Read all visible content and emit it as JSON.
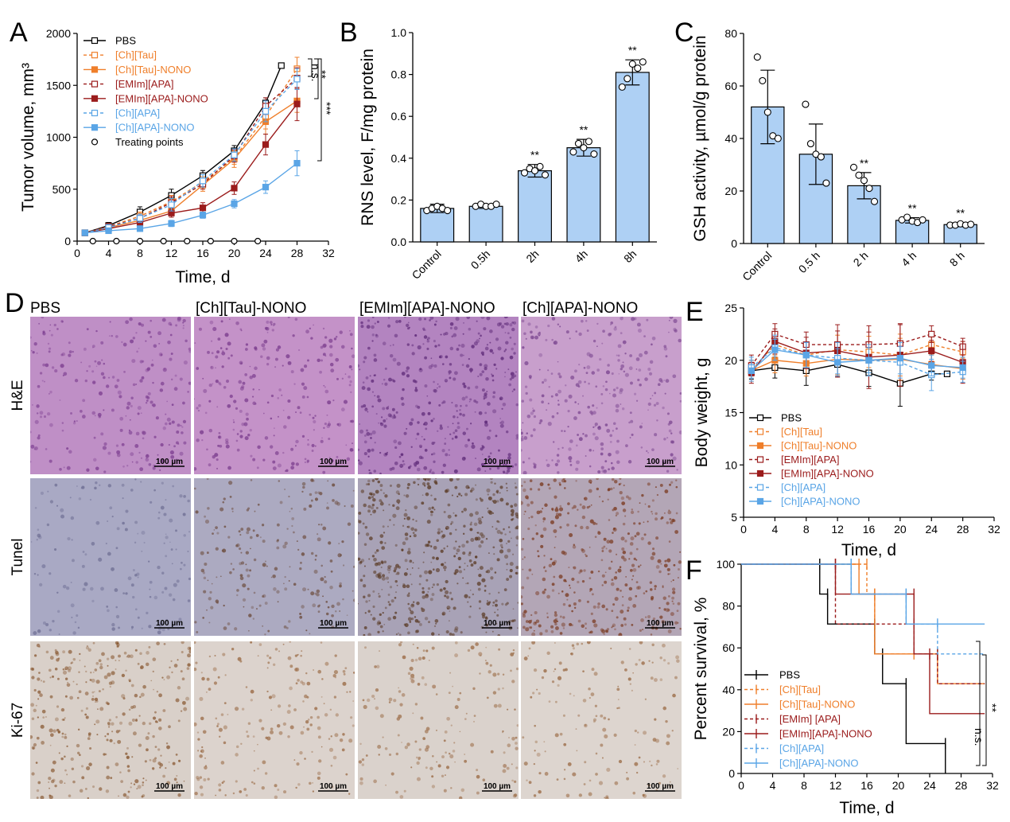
{
  "panels": {
    "A": "A",
    "B": "B",
    "C": "C",
    "D": "D",
    "E": "E",
    "F": "F"
  },
  "colors": {
    "PBS": "#000000",
    "[Ch][Tau]": "#ef7f2b",
    "[Ch][Tau]-NONO": "#ef7f2b",
    "[EMIm][APA]": "#9b1c1c",
    "[EMIm][APA]-NONO": "#9b1c1c",
    "[Ch][APA]": "#5aa5e6",
    "[Ch][APA]-NONO": "#5aa5e6",
    "bar_fill": "#aed0f4"
  },
  "chart_data": [
    {
      "panel": "A",
      "type": "line",
      "xlabel": "Time, d",
      "ylabel": "Tumor volume, mm³",
      "xlim": [
        0,
        32
      ],
      "ylim": [
        0,
        2000
      ],
      "xticks": [
        0,
        4,
        8,
        12,
        16,
        20,
        24,
        28,
        32
      ],
      "yticks": [
        0,
        500,
        1000,
        1500,
        2000
      ],
      "legend_position": "top-left",
      "series": [
        {
          "name": "PBS",
          "style": "solid-open-square",
          "x": [
            1,
            4,
            8,
            12,
            16,
            20,
            24,
            26
          ],
          "y": [
            80,
            150,
            280,
            440,
            630,
            870,
            1330,
            1690
          ],
          "err": [
            20,
            30,
            50,
            60,
            50,
            50,
            50,
            20
          ]
        },
        {
          "name": "[Ch][Tau]",
          "style": "dashed-open-square",
          "x": [
            1,
            4,
            8,
            12,
            16,
            20,
            24,
            28
          ],
          "y": [
            80,
            140,
            240,
            380,
            570,
            800,
            1200,
            1660
          ],
          "err": [
            20,
            30,
            40,
            60,
            50,
            60,
            120,
            110
          ]
        },
        {
          "name": "[Ch][Tau]-NONO",
          "style": "solid-filled-square",
          "x": [
            1,
            4,
            8,
            12,
            16,
            20,
            24,
            28
          ],
          "y": [
            80,
            130,
            200,
            290,
            540,
            790,
            1150,
            1350
          ],
          "err": [
            20,
            20,
            30,
            40,
            60,
            80,
            120,
            110
          ]
        },
        {
          "name": "[EMIm][APA]",
          "style": "dashed-open-square",
          "x": [
            1,
            4,
            8,
            12,
            16,
            20,
            24,
            28
          ],
          "y": [
            80,
            140,
            220,
            370,
            550,
            820,
            1300,
            1570
          ],
          "err": [
            20,
            30,
            40,
            60,
            50,
            60,
            80,
            100
          ]
        },
        {
          "name": "[EMIm][APA]-NONO",
          "style": "solid-filled-square",
          "x": [
            1,
            4,
            8,
            12,
            16,
            20,
            24,
            28
          ],
          "y": [
            80,
            120,
            180,
            270,
            320,
            510,
            930,
            1320
          ],
          "err": [
            20,
            20,
            30,
            40,
            50,
            60,
            100,
            160
          ]
        },
        {
          "name": "[Ch][APA]",
          "style": "dashed-open-square",
          "x": [
            1,
            4,
            8,
            12,
            16,
            20,
            24,
            28
          ],
          "y": [
            80,
            130,
            220,
            350,
            580,
            830,
            1250,
            1560
          ],
          "err": [
            20,
            30,
            40,
            60,
            60,
            60,
            100,
            100
          ]
        },
        {
          "name": "[Ch][APA]-NONO",
          "style": "solid-filled-square",
          "x": [
            1,
            4,
            8,
            12,
            16,
            20,
            24,
            28
          ],
          "y": [
            80,
            100,
            120,
            170,
            250,
            360,
            520,
            750
          ],
          "err": [
            20,
            20,
            20,
            30,
            30,
            40,
            60,
            120
          ]
        },
        {
          "name": "Treating points",
          "style": "open-circle",
          "x": [
            2,
            5,
            8,
            11,
            14,
            17,
            20,
            23
          ],
          "y": [
            0,
            0,
            0,
            0,
            0,
            0,
            0,
            0
          ]
        }
      ],
      "annotations": [
        "n.s.",
        "**",
        "***"
      ]
    },
    {
      "panel": "B",
      "type": "bar",
      "ylabel": "RNS level, F/mg protein",
      "ylim": [
        0,
        1.0
      ],
      "yticks": [
        "0.0",
        "0.2",
        "0.4",
        "0.6",
        "0.8",
        "1.0"
      ],
      "categories": [
        "Control",
        "0.5h",
        "2h",
        "4h",
        "8h"
      ],
      "values": [
        0.16,
        0.17,
        0.34,
        0.45,
        0.81
      ],
      "err": [
        0.02,
        0.01,
        0.03,
        0.04,
        0.06
      ],
      "points": [
        [
          0.15,
          0.16,
          0.17,
          0.16,
          0.15
        ],
        [
          0.17,
          0.18,
          0.17,
          0.17,
          0.18
        ],
        [
          0.33,
          0.35,
          0.34,
          0.36,
          0.32
        ],
        [
          0.43,
          0.47,
          0.45,
          0.48,
          0.42
        ],
        [
          0.74,
          0.78,
          0.85,
          0.83,
          0.86
        ]
      ],
      "significance": [
        "",
        "",
        "**",
        "**",
        "**"
      ]
    },
    {
      "panel": "C",
      "type": "bar",
      "ylabel": "GSH activity, µmol/g protein",
      "ylim": [
        0,
        80
      ],
      "yticks": [
        "0",
        "20",
        "40",
        "60",
        "80"
      ],
      "categories": [
        "Control",
        "0.5 h",
        "2 h",
        "4 h",
        "8 h"
      ],
      "values": [
        52,
        34,
        22,
        8.8,
        7.2
      ],
      "err": [
        14,
        11.5,
        5,
        1,
        0.8
      ],
      "points": [
        [
          71,
          62,
          50,
          41,
          40
        ],
        [
          53,
          38,
          34,
          33,
          23
        ],
        [
          29,
          26,
          24,
          21,
          16
        ],
        [
          9,
          10,
          8.5,
          8,
          9
        ],
        [
          7,
          7,
          7.5,
          7,
          7.3
        ]
      ],
      "significance": [
        "",
        "",
        "**",
        "**",
        "**"
      ]
    },
    {
      "panel": "E",
      "type": "line",
      "xlabel": "Time, d",
      "ylabel": "Body weight, g",
      "xlim": [
        0,
        32
      ],
      "ylim": [
        5,
        25
      ],
      "xticks": [
        0,
        4,
        8,
        12,
        16,
        20,
        24,
        28,
        32
      ],
      "yticks": [
        5,
        10,
        15,
        20,
        25
      ],
      "legend_position": "bottom-left",
      "series": [
        {
          "name": "PBS",
          "style": "solid-open-square",
          "x": [
            1,
            4,
            8,
            12,
            16,
            20,
            24,
            26
          ],
          "y": [
            19.0,
            19.3,
            19.0,
            19.6,
            18.8,
            17.8,
            18.7,
            18.7
          ],
          "err": [
            0.8,
            1.0,
            1.4,
            1.2,
            1.3,
            2.2,
            0.6,
            0.2
          ]
        },
        {
          "name": "[Ch][Tau]",
          "style": "dashed-open-square",
          "x": [
            1,
            4,
            8,
            12,
            16,
            20,
            24,
            28
          ],
          "y": [
            19.0,
            21.5,
            20.5,
            21.0,
            20.8,
            20.5,
            21.5,
            20.8
          ],
          "err": [
            1.0,
            1.0,
            1.2,
            1.4,
            1.5,
            2.0,
            1.0,
            1.0
          ]
        },
        {
          "name": "[Ch][Tau]-NONO",
          "style": "solid-filled-square",
          "x": [
            1,
            4,
            8,
            12,
            16,
            20,
            24,
            28
          ],
          "y": [
            19.0,
            20.0,
            19.7,
            20.1,
            20.0,
            20.1,
            19.6,
            19.2
          ],
          "err": [
            1.0,
            1.2,
            1.2,
            1.5,
            1.5,
            2.0,
            1.0,
            1.0
          ]
        },
        {
          "name": "[EMIm][APA]",
          "style": "dashed-open-square",
          "x": [
            1,
            4,
            8,
            12,
            16,
            20,
            24,
            28
          ],
          "y": [
            19.5,
            22.5,
            21.5,
            21.5,
            21.5,
            21.6,
            22.5,
            21.3
          ],
          "err": [
            1.0,
            1.0,
            1.2,
            1.3,
            1.2,
            1.8,
            0.8,
            0.8
          ]
        },
        {
          "name": "[EMIm][APA]-NONO",
          "style": "solid-filled-square",
          "x": [
            1,
            4,
            8,
            12,
            16,
            20,
            24,
            28
          ],
          "y": [
            18.8,
            21.8,
            20.7,
            20.9,
            20.3,
            20.5,
            20.9,
            19.8
          ],
          "err": [
            1.0,
            1.2,
            1.5,
            2.5,
            3.0,
            3.0,
            1.0,
            2.0
          ]
        },
        {
          "name": "[Ch][APA]",
          "style": "dashed-open-square",
          "x": [
            1,
            4,
            8,
            12,
            16,
            20,
            24,
            28
          ],
          "y": [
            19.3,
            21.2,
            20.5,
            20.2,
            20.0,
            19.8,
            18.6,
            18.9
          ],
          "err": [
            1.0,
            1.2,
            1.2,
            1.5,
            1.5,
            1.5,
            1.5,
            1.0
          ]
        },
        {
          "name": "[Ch][APA]-NONO",
          "style": "solid-filled-square",
          "x": [
            1,
            4,
            8,
            12,
            16,
            20,
            24,
            28
          ],
          "y": [
            19.0,
            21.0,
            20.5,
            19.8,
            20.0,
            20.2,
            19.5,
            19.3
          ],
          "err": [
            1.0,
            1.0,
            1.2,
            1.3,
            1.2,
            1.5,
            1.0,
            1.0
          ]
        }
      ]
    },
    {
      "panel": "F",
      "type": "line",
      "subtype": "step",
      "xlabel": "Time, d",
      "ylabel": "Percent survival, %",
      "xlim": [
        0,
        32
      ],
      "ylim": [
        0,
        100
      ],
      "xticks": [
        0,
        4,
        8,
        12,
        16,
        20,
        24,
        28,
        32
      ],
      "yticks": [
        0,
        20,
        40,
        60,
        80,
        100
      ],
      "legend_position": "bottom-left",
      "series": [
        {
          "name": "PBS",
          "style": "solid",
          "x": [
            0,
            10,
            11,
            17,
            18,
            21,
            26
          ],
          "y": [
            100,
            85.7,
            71.4,
            57.1,
            42.9,
            14.3,
            0
          ],
          "end": 26
        },
        {
          "name": "[Ch][Tau]",
          "style": "dashed",
          "x": [
            0,
            16,
            17,
            25
          ],
          "y": [
            100,
            85.7,
            57.1,
            42.9
          ],
          "end": 31
        },
        {
          "name": "[Ch][Tau]-NONO",
          "style": "solid",
          "x": [
            0,
            15,
            17,
            22,
            25
          ],
          "y": [
            100,
            85.7,
            57.1,
            57.1,
            42.9
          ],
          "end": 31
        },
        {
          "name": "[EMIm] [APA]",
          "style": "dashed",
          "x": [
            0,
            12,
            22,
            25
          ],
          "y": [
            100,
            71.4,
            57.1,
            42.9
          ],
          "end": 31
        },
        {
          "name": "[EMIm][APA]-NONO",
          "style": "solid",
          "x": [
            0,
            12,
            22,
            24
          ],
          "y": [
            100,
            85.7,
            57.1,
            28.6
          ],
          "end": 31
        },
        {
          "name": "[Ch][APA]",
          "style": "dashed",
          "x": [
            0,
            14,
            21,
            25
          ],
          "y": [
            100,
            85.7,
            71.4,
            57.1
          ],
          "end": 31
        },
        {
          "name": "[Ch][APA]-NONO",
          "style": "solid",
          "x": [
            0,
            14,
            21
          ],
          "y": [
            100,
            85.7,
            71.4
          ],
          "end": 31
        }
      ],
      "annotations": [
        "n.s.",
        "**"
      ]
    }
  ],
  "panelD": {
    "columns": [
      "PBS",
      "[Ch][Tau]-NONO",
      "[EMIm][APA]-NONO",
      "[Ch][APA]-NONO"
    ],
    "rows": [
      "H&E",
      "Tunel",
      "Ki-67"
    ],
    "scale_label": "100 µm",
    "tiles": [
      {
        "base": "#bf8fc6",
        "dot": "#7d3f91",
        "count": 260
      },
      {
        "base": "#c492c8",
        "dot": "#7a3c8d",
        "count": 260
      },
      {
        "base": "#b384c0",
        "dot": "#5e2a78",
        "count": 420
      },
      {
        "base": "#c89fcc",
        "dot": "#7b4690",
        "count": 300
      },
      {
        "base": "#a9a9c4",
        "dot": "#6e6e93",
        "count": 160
      },
      {
        "base": "#acaac1",
        "dot": "#6b4a3a",
        "count": 220
      },
      {
        "base": "#a8a2b6",
        "dot": "#5a3a24",
        "count": 520
      },
      {
        "base": "#b3a6b6",
        "dot": "#7a3a20",
        "count": 420
      },
      {
        "base": "#d9d0c9",
        "dot": "#8a5a34",
        "count": 340
      },
      {
        "base": "#dcd3cd",
        "dot": "#9a6a44",
        "count": 200
      },
      {
        "base": "#dad2cc",
        "dot": "#9a6a44",
        "count": 180
      },
      {
        "base": "#ddd5cf",
        "dot": "#9a6a44",
        "count": 160
      }
    ]
  }
}
